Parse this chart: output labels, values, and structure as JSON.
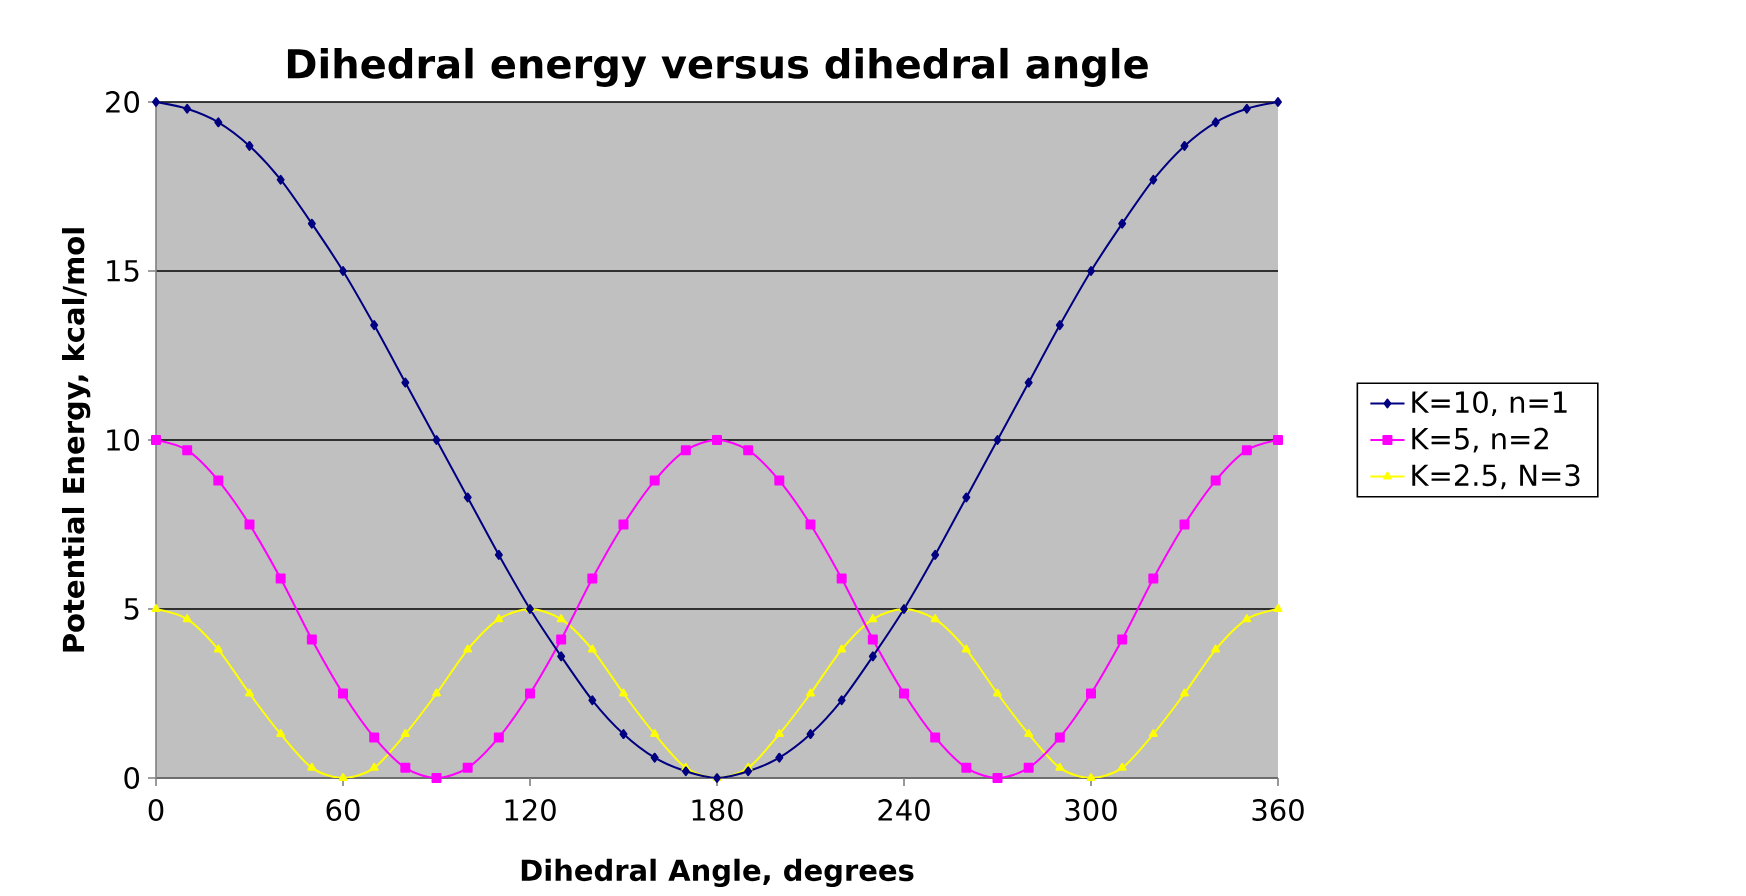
{
  "chart_data": {
    "type": "line",
    "title": "Dihedral energy versus dihedral angle",
    "xlabel": "Dihedral Angle, degrees",
    "ylabel": "Potential Energy, kcal/mol",
    "x": [
      0,
      10,
      20,
      30,
      40,
      50,
      60,
      70,
      80,
      90,
      100,
      110,
      120,
      130,
      140,
      150,
      160,
      170,
      180,
      190,
      200,
      210,
      220,
      230,
      240,
      250,
      260,
      270,
      280,
      290,
      300,
      310,
      320,
      330,
      340,
      350,
      360
    ],
    "series": [
      {
        "name": "K=10, n=1",
        "color": "#000080",
        "marker": "diamond",
        "values": [
          20,
          19.8,
          19.4,
          18.7,
          17.7,
          16.4,
          15,
          13.4,
          11.7,
          10,
          8.3,
          6.6,
          5,
          3.6,
          2.3,
          1.3,
          0.6,
          0.2,
          0,
          0.2,
          0.6,
          1.3,
          2.3,
          3.6,
          5,
          6.6,
          8.3,
          10,
          11.7,
          13.4,
          15,
          16.4,
          17.7,
          18.7,
          19.4,
          19.8,
          20
        ]
      },
      {
        "name": "K=5, n=2",
        "color": "#ff00ff",
        "marker": "square",
        "values": [
          10,
          9.7,
          8.8,
          7.5,
          5.9,
          4.1,
          2.5,
          1.2,
          0.3,
          0,
          0.3,
          1.2,
          2.5,
          4.1,
          5.9,
          7.5,
          8.8,
          9.7,
          10,
          9.7,
          8.8,
          7.5,
          5.9,
          4.1,
          2.5,
          1.2,
          0.3,
          0,
          0.3,
          1.2,
          2.5,
          4.1,
          5.9,
          7.5,
          8.8,
          9.7,
          10
        ]
      },
      {
        "name": "K=2.5, N=3",
        "color": "#ffff00",
        "marker": "triangle",
        "values": [
          5,
          4.7,
          3.8,
          2.5,
          1.3,
          0.3,
          0,
          0.3,
          1.3,
          2.5,
          3.8,
          4.7,
          5,
          4.7,
          3.8,
          2.5,
          1.3,
          0.3,
          0,
          0.3,
          1.3,
          2.5,
          3.8,
          4.7,
          5,
          4.7,
          3.8,
          2.5,
          1.3,
          0.3,
          0,
          0.3,
          1.3,
          2.5,
          3.8,
          4.7,
          5
        ]
      }
    ],
    "xlim": [
      0,
      360
    ],
    "ylim": [
      0,
      20
    ],
    "xticks": [
      0,
      60,
      120,
      180,
      240,
      300,
      360
    ],
    "yticks": [
      0,
      5,
      10,
      15,
      20
    ],
    "grid": "y",
    "legend": "right",
    "line_style": "solid"
  }
}
